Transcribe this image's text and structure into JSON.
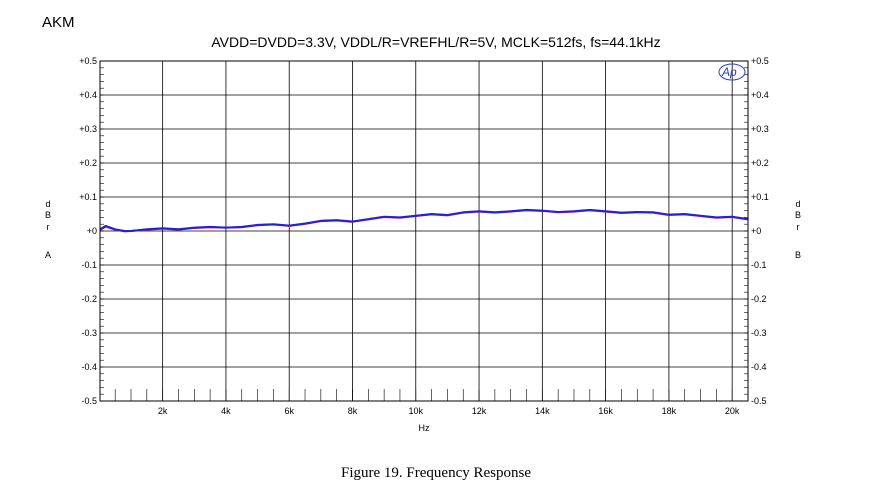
{
  "brand": "AKM",
  "caption": "Figure 19. Frequency Response",
  "logo_text": "Ap",
  "colors": {
    "series_main": "#2020e0",
    "series_overlay": "#d0202a",
    "logo": "#2b3fb0"
  },
  "chart_data": {
    "type": "line",
    "title": "AVDD=DVDD=3.3V, VDDL/R=VREFHL/R=5V, MCLK=512fs, fs=44.1kHz",
    "xlabel": "Hz",
    "ylabel_left": "d B r A",
    "ylabel_right": "d B r B",
    "xlim": [
      20,
      20500
    ],
    "ylim": [
      -0.5,
      0.5
    ],
    "grid": true,
    "x_ticks": [
      2000,
      4000,
      6000,
      8000,
      10000,
      12000,
      14000,
      16000,
      18000,
      20000
    ],
    "x_tick_labels": [
      "2k",
      "4k",
      "6k",
      "8k",
      "10k",
      "12k",
      "14k",
      "16k",
      "18k",
      "20k"
    ],
    "y_ticks": [
      0.5,
      0.4,
      0.3,
      0.2,
      0.1,
      0,
      -0.1,
      -0.2,
      -0.3,
      -0.4,
      -0.5
    ],
    "y_tick_labels_left": [
      "+0.5",
      "+0.4",
      "+0.3",
      "+0.2",
      "+0.1",
      "+0",
      "-0.1",
      "-0.2",
      "-0.3",
      "-0.4",
      "-0.5"
    ],
    "y_tick_labels_right": [
      "+0.5",
      "+0.4",
      "+0.3",
      "+0.2",
      "+0.1",
      "+0",
      "-0.1",
      "-0.2",
      "-0.3",
      "-0.4",
      "-0.5"
    ],
    "series": [
      {
        "x": [
          20,
          200,
          500,
          800,
          1000,
          1500,
          2000,
          2500,
          3000,
          3500,
          4000,
          4500,
          5000,
          5500,
          6000,
          6500,
          7000,
          7500,
          8000,
          8500,
          9000,
          9500,
          10000,
          10500,
          11000,
          11500,
          12000,
          12500,
          13000,
          13500,
          14000,
          14500,
          15000,
          15500,
          16000,
          16500,
          17000,
          17500,
          18000,
          18500,
          19000,
          19500,
          20000,
          20500
        ],
        "y": [
          0.005,
          0.015,
          0.005,
          0.0,
          0.0,
          0.005,
          0.008,
          0.005,
          0.01,
          0.012,
          0.01,
          0.012,
          0.018,
          0.02,
          0.016,
          0.022,
          0.03,
          0.032,
          0.028,
          0.035,
          0.042,
          0.04,
          0.045,
          0.05,
          0.047,
          0.055,
          0.058,
          0.055,
          0.058,
          0.062,
          0.06,
          0.056,
          0.058,
          0.062,
          0.058,
          0.054,
          0.056,
          0.055,
          0.048,
          0.05,
          0.045,
          0.04,
          0.042,
          0.035
        ]
      },
      {
        "x": [
          20,
          200,
          500,
          800,
          1000,
          1500,
          2000,
          2500,
          3000,
          3500,
          4000,
          4500,
          5000,
          5500,
          6000,
          6500,
          7000,
          7500,
          8000,
          8500,
          9000,
          9500,
          10000,
          10500,
          11000,
          11500,
          12000,
          12500,
          13000,
          13500,
          14000,
          14500,
          15000,
          15500,
          16000,
          16500,
          17000,
          17500,
          18000,
          18500,
          19000,
          19500,
          20000,
          20500
        ],
        "y": [
          0.003,
          0.013,
          0.004,
          -0.001,
          0.0,
          0.004,
          0.007,
          0.004,
          0.009,
          0.011,
          0.01,
          0.011,
          0.017,
          0.019,
          0.015,
          0.021,
          0.029,
          0.031,
          0.027,
          0.034,
          0.041,
          0.039,
          0.044,
          0.049,
          0.046,
          0.054,
          0.057,
          0.054,
          0.057,
          0.061,
          0.059,
          0.055,
          0.057,
          0.061,
          0.057,
          0.053,
          0.055,
          0.054,
          0.047,
          0.049,
          0.044,
          0.039,
          0.041,
          0.034
        ]
      }
    ]
  }
}
